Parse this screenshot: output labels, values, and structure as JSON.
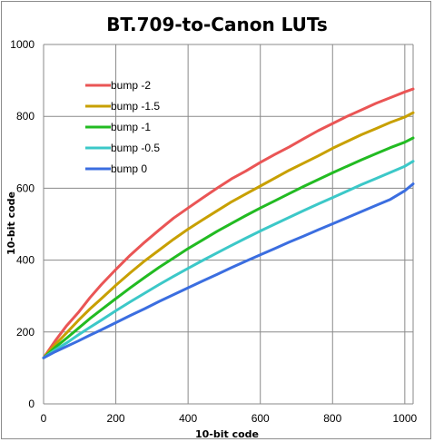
{
  "chart_data": {
    "type": "line",
    "title": "BT.709-to-Canon LUTs",
    "xlabel": "10-bit code",
    "ylabel": "10-bit code",
    "xlim": [
      0,
      1023
    ],
    "ylim": [
      0,
      1000
    ],
    "xticks": [
      0,
      200,
      400,
      600,
      800,
      1000
    ],
    "yticks": [
      0,
      200,
      400,
      600,
      800,
      1000
    ],
    "grid": true,
    "legend_position": "top-left",
    "series": [
      {
        "name": "bump -2",
        "color": "#ea5555",
        "points": [
          [
            0,
            128
          ],
          [
            32,
            175
          ],
          [
            64,
            218
          ],
          [
            96,
            254
          ],
          [
            128,
            295
          ],
          [
            160,
            332
          ],
          [
            200,
            374
          ],
          [
            240,
            414
          ],
          [
            280,
            450
          ],
          [
            320,
            484
          ],
          [
            360,
            517
          ],
          [
            400,
            545
          ],
          [
            440,
            573
          ],
          [
            480,
            600
          ],
          [
            520,
            626
          ],
          [
            560,
            648
          ],
          [
            600,
            672
          ],
          [
            640,
            694
          ],
          [
            680,
            715
          ],
          [
            720,
            738
          ],
          [
            760,
            760
          ],
          [
            800,
            780
          ],
          [
            840,
            800
          ],
          [
            880,
            818
          ],
          [
            920,
            836
          ],
          [
            960,
            852
          ],
          [
            1000,
            868
          ],
          [
            1023,
            876
          ]
        ]
      },
      {
        "name": "bump -1.5",
        "color": "#c8a000",
        "points": [
          [
            0,
            128
          ],
          [
            32,
            165
          ],
          [
            64,
            198
          ],
          [
            96,
            232
          ],
          [
            128,
            264
          ],
          [
            160,
            293
          ],
          [
            200,
            330
          ],
          [
            240,
            365
          ],
          [
            280,
            398
          ],
          [
            320,
            428
          ],
          [
            360,
            458
          ],
          [
            400,
            486
          ],
          [
            440,
            512
          ],
          [
            480,
            537
          ],
          [
            520,
            562
          ],
          [
            560,
            584
          ],
          [
            600,
            606
          ],
          [
            640,
            628
          ],
          [
            680,
            650
          ],
          [
            720,
            670
          ],
          [
            760,
            690
          ],
          [
            800,
            711
          ],
          [
            840,
            730
          ],
          [
            880,
            749
          ],
          [
            920,
            766
          ],
          [
            960,
            783
          ],
          [
            1000,
            798
          ],
          [
            1023,
            810
          ]
        ]
      },
      {
        "name": "bump -1",
        "color": "#22bb22",
        "points": [
          [
            0,
            128
          ],
          [
            32,
            157
          ],
          [
            64,
            183
          ],
          [
            96,
            210
          ],
          [
            128,
            237
          ],
          [
            160,
            262
          ],
          [
            200,
            293
          ],
          [
            240,
            323
          ],
          [
            280,
            352
          ],
          [
            320,
            380
          ],
          [
            360,
            406
          ],
          [
            400,
            432
          ],
          [
            440,
            456
          ],
          [
            480,
            480
          ],
          [
            520,
            502
          ],
          [
            560,
            524
          ],
          [
            600,
            545
          ],
          [
            640,
            565
          ],
          [
            680,
            585
          ],
          [
            720,
            605
          ],
          [
            760,
            624
          ],
          [
            800,
            643
          ],
          [
            840,
            661
          ],
          [
            880,
            679
          ],
          [
            920,
            696
          ],
          [
            960,
            713
          ],
          [
            1000,
            728
          ],
          [
            1023,
            740
          ]
        ]
      },
      {
        "name": "bump -0.5",
        "color": "#3cc8c8",
        "points": [
          [
            0,
            128
          ],
          [
            32,
            150
          ],
          [
            64,
            170
          ],
          [
            96,
            192
          ],
          [
            128,
            213
          ],
          [
            160,
            233
          ],
          [
            200,
            259
          ],
          [
            240,
            284
          ],
          [
            280,
            308
          ],
          [
            320,
            332
          ],
          [
            360,
            355
          ],
          [
            400,
            377
          ],
          [
            440,
            399
          ],
          [
            480,
            420
          ],
          [
            520,
            441
          ],
          [
            560,
            461
          ],
          [
            600,
            481
          ],
          [
            640,
            500
          ],
          [
            680,
            519
          ],
          [
            720,
            538
          ],
          [
            760,
            556
          ],
          [
            800,
            574
          ],
          [
            840,
            592
          ],
          [
            880,
            610
          ],
          [
            920,
            627
          ],
          [
            960,
            644
          ],
          [
            1000,
            661
          ],
          [
            1023,
            675
          ]
        ]
      },
      {
        "name": "bump 0",
        "color": "#3b6ee0",
        "points": [
          [
            0,
            128
          ],
          [
            32,
            145
          ],
          [
            64,
            160
          ],
          [
            96,
            175
          ],
          [
            128,
            191
          ],
          [
            160,
            206
          ],
          [
            200,
            226
          ],
          [
            240,
            246
          ],
          [
            280,
            265
          ],
          [
            320,
            285
          ],
          [
            360,
            304
          ],
          [
            400,
            323
          ],
          [
            440,
            342
          ],
          [
            480,
            360
          ],
          [
            520,
            379
          ],
          [
            560,
            397
          ],
          [
            600,
            415
          ],
          [
            640,
            432
          ],
          [
            680,
            450
          ],
          [
            720,
            467
          ],
          [
            760,
            484
          ],
          [
            800,
            501
          ],
          [
            840,
            518
          ],
          [
            880,
            535
          ],
          [
            920,
            552
          ],
          [
            960,
            569
          ],
          [
            1000,
            593
          ],
          [
            1023,
            612
          ]
        ]
      }
    ]
  }
}
